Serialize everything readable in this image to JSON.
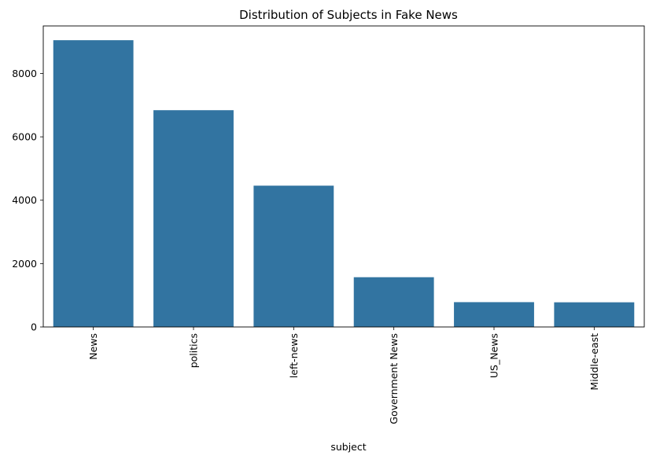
{
  "chart_data": {
    "type": "bar",
    "title": "Distribution of Subjects in Fake News",
    "xlabel": "subject",
    "ylabel": "",
    "categories": [
      "News",
      "politics",
      "left-news",
      "Government News",
      "US_News",
      "Middle-east"
    ],
    "values": [
      9050,
      6841,
      4459,
      1570,
      783,
      778
    ],
    "ylim": [
      0,
      9500
    ],
    "yticks": [
      0,
      2000,
      4000,
      6000,
      8000
    ],
    "bar_color": "#3274a1",
    "grid": false,
    "legend": "none"
  }
}
